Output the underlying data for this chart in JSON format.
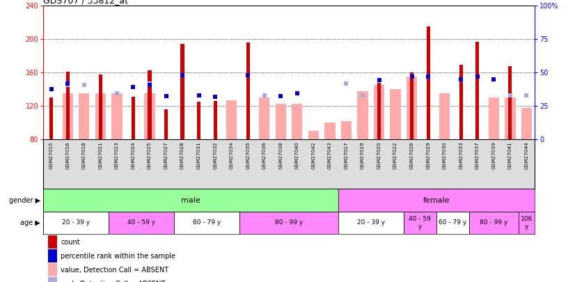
{
  "title": "GDS707 / 33812_at",
  "samples": [
    "GSM27015",
    "GSM27016",
    "GSM27018",
    "GSM27021",
    "GSM27023",
    "GSM27024",
    "GSM27025",
    "GSM27027",
    "GSM27028",
    "GSM27031",
    "GSM27032",
    "GSM27034",
    "GSM27035",
    "GSM27036",
    "GSM27038",
    "GSM27040",
    "GSM27042",
    "GSM27043",
    "GSM27017",
    "GSM27019",
    "GSM27020",
    "GSM27022",
    "GSM27026",
    "GSM27029",
    "GSM27030",
    "GSM27033",
    "GSM27037",
    "GSM27039",
    "GSM27041",
    "GSM27044"
  ],
  "count_values": [
    130,
    161,
    null,
    158,
    null,
    131,
    163,
    116,
    194,
    125,
    126,
    null,
    196,
    null,
    null,
    null,
    null,
    null,
    null,
    null,
    148,
    null,
    160,
    215,
    null,
    169,
    197,
    null,
    168,
    null
  ],
  "absent_count_values": [
    null,
    135,
    135,
    135,
    135,
    null,
    135,
    null,
    null,
    null,
    null,
    127,
    null,
    130,
    123,
    123,
    90,
    100,
    102,
    138,
    145,
    140,
    155,
    null,
    135,
    null,
    null,
    130,
    130,
    118
  ],
  "absent_rank_values": [
    null,
    145,
    145,
    null,
    135,
    null,
    147,
    null,
    null,
    null,
    null,
    null,
    null,
    133,
    null,
    null,
    null,
    null,
    147,
    133,
    null,
    null,
    155,
    null,
    null,
    null,
    null,
    null,
    133,
    133
  ],
  "blue_square_values": [
    140,
    147,
    null,
    null,
    null,
    143,
    145,
    132,
    157,
    133,
    131,
    null,
    157,
    null,
    132,
    135,
    null,
    null,
    null,
    null,
    151,
    null,
    155,
    155,
    null,
    152,
    155,
    152,
    null,
    null
  ],
  "ylim_left": [
    80,
    240
  ],
  "ylim_right": [
    0,
    100
  ],
  "yticks_left": [
    80,
    120,
    160,
    200,
    240
  ],
  "yticks_right": [
    0,
    25,
    50,
    75,
    100
  ],
  "ytick_right_labels": [
    "0",
    "25",
    "50",
    "75",
    "100%"
  ],
  "grid_lines": [
    120,
    160,
    200
  ],
  "count_color": "#cc0000",
  "absent_count_color": "#ffaaaa",
  "blue_color": "#0000cc",
  "absent_blue_color": "#aaaadd",
  "gender_male_color": "#99ff99",
  "gender_female_color": "#ff88ff",
  "bg_xlabel_color": "#dddddd",
  "gender_groups": [
    {
      "label": "male",
      "start": 0,
      "end": 18
    },
    {
      "label": "female",
      "start": 18,
      "end": 30
    }
  ],
  "age_groups": [
    {
      "label": "20 - 39 y",
      "start": 0,
      "end": 4,
      "color": "#ffffff"
    },
    {
      "label": "40 - 59 y",
      "start": 4,
      "end": 8,
      "color": "#ff88ff"
    },
    {
      "label": "60 - 79 y",
      "start": 8,
      "end": 12,
      "color": "#ffffff"
    },
    {
      "label": "80 - 99 y",
      "start": 12,
      "end": 18,
      "color": "#ff88ff"
    },
    {
      "label": "20 - 39 y",
      "start": 18,
      "end": 22,
      "color": "#ffffff"
    },
    {
      "label": "40 - 59\ny",
      "start": 22,
      "end": 24,
      "color": "#ff88ff"
    },
    {
      "label": "60 - 79 y",
      "start": 24,
      "end": 26,
      "color": "#ffffff"
    },
    {
      "label": "80 - 99 y",
      "start": 26,
      "end": 29,
      "color": "#ff88ff"
    },
    {
      "label": "106\ny",
      "start": 29,
      "end": 30,
      "color": "#ff88ff"
    }
  ],
  "legend_items": [
    {
      "label": "count",
      "color": "#cc0000"
    },
    {
      "label": "percentile rank within the sample",
      "color": "#0000cc"
    },
    {
      "label": "value, Detection Call = ABSENT",
      "color": "#ffaaaa"
    },
    {
      "label": "rank, Detection Call = ABSENT",
      "color": "#aaaadd"
    }
  ]
}
